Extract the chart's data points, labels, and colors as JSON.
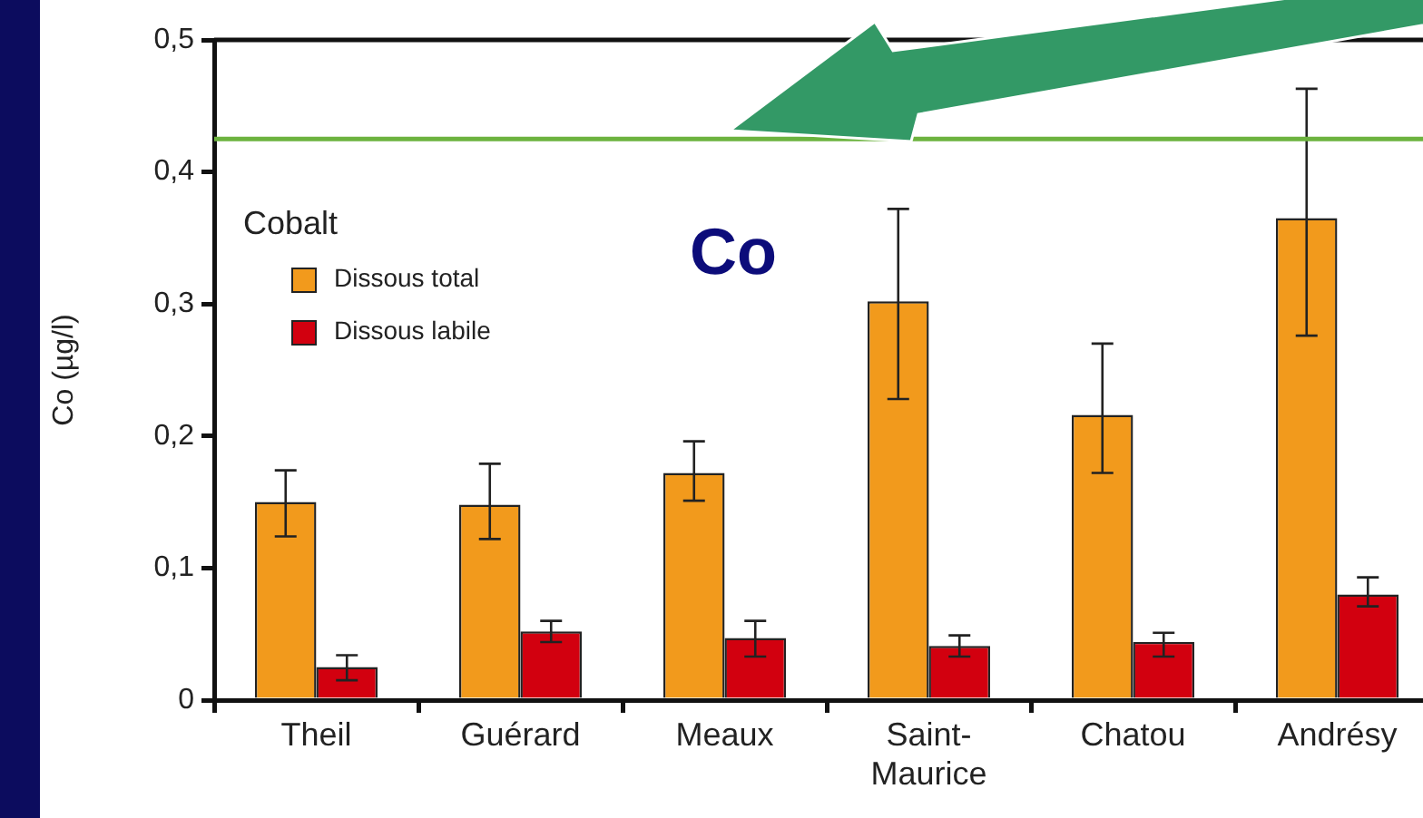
{
  "chart_data": {
    "type": "bar",
    "ylabel": "Co (µg/l)",
    "legend_title": "Cobalt",
    "legend": "top left",
    "grid": false,
    "categories": [
      "Theil",
      "Guérard",
      "Meaux",
      "Saint-Maurice",
      "Chatou",
      "Andrésy"
    ],
    "series": [
      {
        "name": "Dissous total",
        "color": "#f29a1c",
        "values": [
          0.15,
          0.148,
          0.172,
          0.302,
          0.216,
          0.365
        ],
        "errors": [
          [
            0.124,
            0.174
          ],
          [
            0.122,
            0.179
          ],
          [
            0.151,
            0.196
          ],
          [
            0.228,
            0.372
          ],
          [
            0.172,
            0.27
          ],
          [
            0.276,
            0.463
          ]
        ]
      },
      {
        "name": "Dissous labile",
        "color": "#d2000f",
        "values": [
          0.025,
          0.052,
          0.047,
          0.041,
          0.044,
          0.08
        ],
        "errors": [
          [
            0.015,
            0.034
          ],
          [
            0.044,
            0.06
          ],
          [
            0.033,
            0.06
          ],
          [
            0.033,
            0.049
          ],
          [
            0.033,
            0.051
          ],
          [
            0.071,
            0.093
          ]
        ]
      }
    ],
    "ylim": [
      0,
      0.5
    ],
    "yticks": [
      {
        "value": 0,
        "label": "0"
      },
      {
        "value": 0.1,
        "label": "0,1"
      },
      {
        "value": 0.2,
        "label": "0,2"
      },
      {
        "value": 0.3,
        "label": "0,3"
      },
      {
        "value": 0.4,
        "label": "0,4"
      },
      {
        "value": 0.5,
        "label": "0,5"
      }
    ],
    "ref_lines": [
      {
        "axis": "y",
        "value": 0.425,
        "color": "#6cb33f"
      }
    ],
    "annotations": [
      "Co"
    ]
  }
}
